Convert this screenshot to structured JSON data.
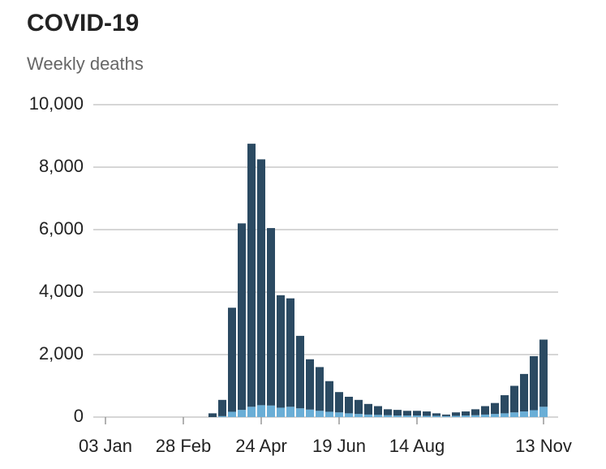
{
  "chart_data": {
    "type": "stacked_bar",
    "title": "COVID-19",
    "subtitle": "Weekly deaths",
    "categories": [
      "03 Jan",
      null,
      null,
      null,
      null,
      null,
      null,
      null,
      "28 Feb",
      null,
      null,
      null,
      null,
      null,
      null,
      null,
      "24 Apr",
      null,
      null,
      null,
      null,
      null,
      null,
      null,
      "19 Jun",
      null,
      null,
      null,
      null,
      null,
      null,
      null,
      "14 Aug",
      null,
      null,
      null,
      null,
      null,
      null,
      null,
      null,
      null,
      null,
      null,
      null,
      "13 Nov"
    ],
    "series": [
      {
        "color": "#6aaed6",
        "values": [
          0,
          0,
          0,
          0,
          0,
          0,
          0,
          0,
          0,
          0,
          0,
          0,
          30,
          170,
          230,
          330,
          380,
          370,
          300,
          330,
          280,
          240,
          200,
          170,
          150,
          120,
          100,
          80,
          70,
          60,
          50,
          50,
          50,
          40,
          40,
          30,
          40,
          50,
          60,
          80,
          100,
          120,
          150,
          180,
          220,
          330
        ]
      },
      {
        "color": "#2b4a62",
        "values": [
          0,
          0,
          0,
          0,
          0,
          0,
          0,
          0,
          0,
          0,
          0,
          120,
          520,
          3330,
          5970,
          8420,
          7870,
          5680,
          3600,
          3470,
          2320,
          1610,
          1400,
          980,
          650,
          530,
          450,
          340,
          280,
          190,
          180,
          150,
          150,
          140,
          80,
          50,
          110,
          130,
          190,
          270,
          350,
          580,
          850,
          1200,
          1730,
          2150
        ]
      }
    ],
    "ylim": [
      0,
      10000
    ],
    "yticks": [
      0,
      {
        "value": 2000,
        "label": "2,000"
      },
      {
        "value": 4000,
        "label": "4,000"
      },
      {
        "value": 6000,
        "label": "6,000"
      },
      {
        "value": 8000,
        "label": "8,000"
      },
      {
        "value": 10000,
        "label": "10,000"
      }
    ],
    "grid": true
  }
}
